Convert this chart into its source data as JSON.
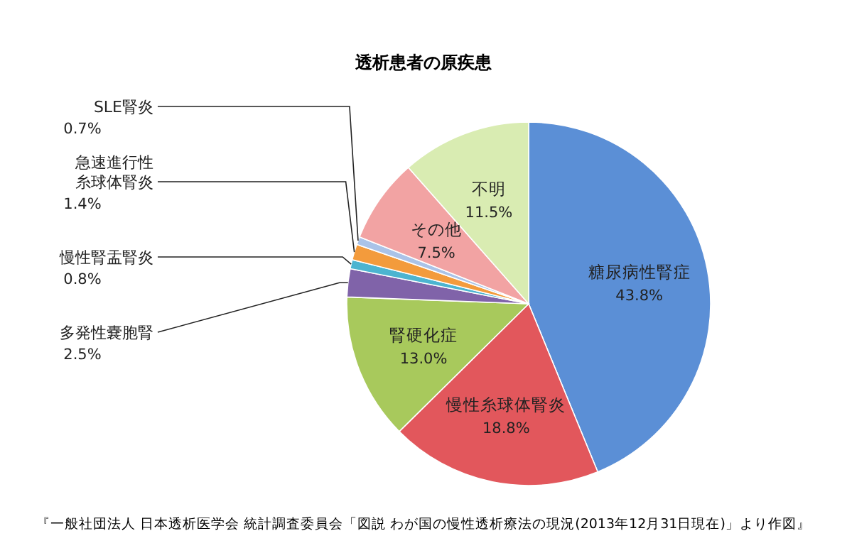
{
  "chart_data": {
    "type": "pie",
    "title": "透析患者の原疾患",
    "categories": [
      "糖尿病性腎症",
      "慢性糸球体腎炎",
      "腎硬化症",
      "多発性嚢胞腎",
      "慢性腎盂腎炎",
      "急速進行性糸球体腎炎",
      "SLE腎炎",
      "その他",
      "不明"
    ],
    "values": [
      43.8,
      18.8,
      13.0,
      2.5,
      0.8,
      1.4,
      0.7,
      7.5,
      11.5
    ],
    "value_labels": [
      "43.8%",
      "18.8%",
      "13.0%",
      "2.5%",
      "0.8%",
      "1.4%",
      "0.7%",
      "7.5%",
      "11.5%"
    ],
    "colors": [
      "#5b8fd6",
      "#e2575c",
      "#a8c95c",
      "#8063a9",
      "#4cb4d0",
      "#f39b3c",
      "#aac3e8",
      "#f2a3a3",
      "#d9ecb2"
    ],
    "annotations": [
      "『一般社団法人 日本透析医学会 統計調査委員会「図説 わが国の慢性透析療法の現況(2013年12月31日現在)」より作図』"
    ]
  }
}
